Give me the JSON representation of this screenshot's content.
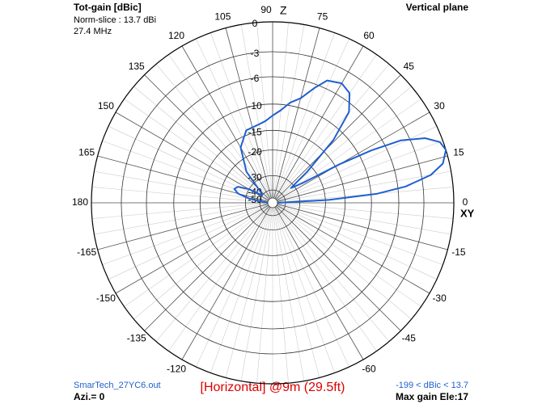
{
  "chart_data": {
    "type": "polar",
    "title": "Tot-gain [dBic]",
    "subtitle": [
      "Norm-slice : 13.7 dBi",
      "27.4 MHz"
    ],
    "plane": "Vertical plane",
    "z_label": "Z",
    "xy_label": "XY",
    "file": "SmarTech_27YC6.out",
    "azimuth": "Azi.= 0",
    "caption": "[Horizontal] @9m (29.5ft)",
    "range_text": "-199 < dBic < 13.7",
    "max_gain": "Max gain Ele:17",
    "rlim": [
      -50,
      0
    ],
    "rticks": [
      0,
      -3,
      -6,
      -10,
      -15,
      -20,
      -30,
      -40,
      -50
    ],
    "angle_ticks": [
      0,
      15,
      30,
      45,
      60,
      75,
      90,
      105,
      120,
      135,
      150,
      165,
      180,
      -165,
      -150,
      -135,
      -120,
      -60,
      -45,
      -30,
      -15
    ],
    "series": [
      {
        "color": "#1f5fd0",
        "angles": [
          0,
          3,
          5,
          7,
          10,
          13,
          17,
          20,
          23,
          26,
          28,
          30,
          33,
          35,
          39,
          42,
          46,
          50,
          55,
          60,
          66,
          70,
          75,
          80,
          85,
          90,
          95,
          100,
          110,
          120,
          130,
          140,
          145,
          150,
          155,
          160,
          165,
          170,
          175,
          180
        ],
        "values": [
          -50,
          -19,
          -9,
          -5,
          -2,
          -0.6,
          0,
          -0.3,
          -1.5,
          -4,
          -8,
          -14,
          -25,
          -28,
          -32,
          -22,
          -12,
          -7,
          -5,
          -4.5,
          -5,
          -6.5,
          -8.5,
          -9.5,
          -11,
          -12,
          -13,
          -13.5,
          -14,
          -17,
          -24,
          -39,
          -40,
          -30,
          -25,
          -24,
          -26,
          -32,
          -45,
          -50
        ]
      }
    ]
  }
}
